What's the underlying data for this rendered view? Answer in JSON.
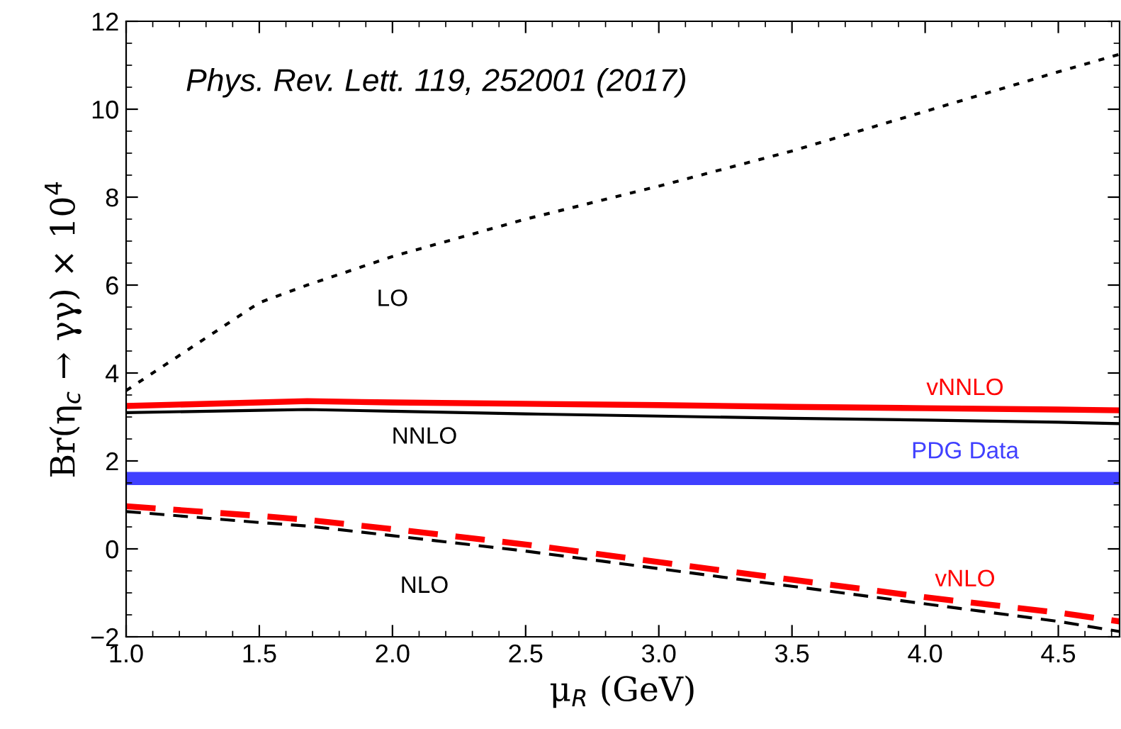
{
  "chart_data": {
    "type": "line",
    "xlabel": "μ$_{R}$ (GeV)",
    "ylabel": "Br(η$_{c}$ → γγ) × 10$^{4}$",
    "annotations": [
      "Phys. Rev. Lett. 119, 252001 (2017)"
    ],
    "xlim": [
      1.0,
      4.73
    ],
    "xticks": [
      {
        "value": 1.0,
        "label": "1.0"
      },
      {
        "value": 1.5,
        "label": "1.5"
      },
      {
        "value": 2.0,
        "label": "2.0"
      },
      {
        "value": 2.5,
        "label": "2.5"
      },
      {
        "value": 3.0,
        "label": "3.0"
      },
      {
        "value": 3.5,
        "label": "3.5"
      },
      {
        "value": 4.0,
        "label": "4.0"
      },
      {
        "value": 4.5,
        "label": "4.5"
      }
    ],
    "ylim": [
      -2,
      12
    ],
    "yticks": [
      {
        "value": -2,
        "label": "−2"
      },
      0,
      2,
      4,
      6,
      8,
      10,
      12
    ],
    "x": [
      1.0,
      1.5,
      1.68,
      2.0,
      2.5,
      3.0,
      3.5,
      4.0,
      4.5,
      4.73
    ],
    "series": [
      {
        "name": "LO",
        "color": "#000000",
        "line_style": "dotted",
        "values": [
          3.6,
          5.6,
          6.0,
          6.65,
          7.5,
          8.25,
          9.05,
          9.95,
          10.85,
          11.25
        ]
      },
      {
        "name": "vNNLO",
        "color": "#ff0000",
        "line_style": "solid",
        "values": [
          3.25,
          3.33,
          3.36,
          3.33,
          3.3,
          3.27,
          3.23,
          3.2,
          3.17,
          3.15
        ]
      },
      {
        "name": "NNLO",
        "color": "#000000",
        "line_style": "solid",
        "values": [
          3.1,
          3.15,
          3.17,
          3.13,
          3.07,
          3.02,
          2.97,
          2.93,
          2.88,
          2.85
        ]
      },
      {
        "name": "vNLO",
        "color": "#ff0000",
        "line_style": "dashed",
        "values": [
          0.97,
          0.75,
          0.66,
          0.45,
          0.1,
          -0.3,
          -0.7,
          -1.1,
          -1.45,
          -1.65
        ]
      },
      {
        "name": "NLO",
        "color": "#000000",
        "line_style": "dashed",
        "values": [
          0.85,
          0.6,
          0.52,
          0.3,
          -0.05,
          -0.45,
          -0.85,
          -1.25,
          -1.65,
          -1.88
        ]
      }
    ],
    "bands": [
      {
        "axis": "y",
        "from": 1.45,
        "to": 1.75,
        "label": "PDG Data",
        "color": "#4040ff"
      }
    ]
  }
}
